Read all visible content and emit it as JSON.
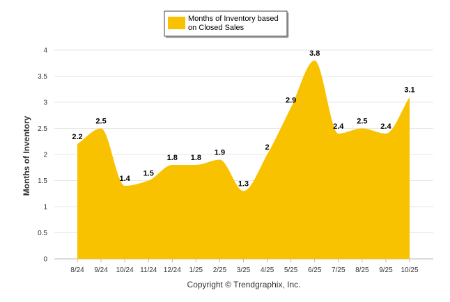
{
  "chart_data": {
    "type": "area",
    "series_name_lines": [
      "Months of Inventory based",
      "on Closed Sales"
    ],
    "categories": [
      "8/24",
      "9/24",
      "10/24",
      "11/24",
      "12/24",
      "1/25",
      "2/25",
      "3/25",
      "4/25",
      "5/25",
      "6/25",
      "7/25",
      "8/25",
      "9/25",
      "10/25"
    ],
    "values": [
      2.2,
      2.5,
      1.4,
      1.5,
      1.8,
      1.8,
      1.9,
      1.3,
      2,
      2.9,
      3.8,
      2.4,
      2.5,
      2.4,
      3.1
    ],
    "value_labels": [
      "2.2",
      "2.5",
      "1.4",
      "1.5",
      "1.8",
      "1.8",
      "1.9",
      "1.3",
      "2",
      "2.9",
      "3.8",
      "2.4",
      "2.5",
      "2.4",
      "3.1"
    ],
    "ylabel": "Months of Inventory",
    "xlabel": "",
    "ylim": [
      0,
      4
    ],
    "yticks": [
      "0",
      "0.5",
      "1",
      "1.5",
      "2",
      "2.5",
      "3",
      "3.5",
      "4"
    ],
    "grid": true,
    "legend_position": "top-center",
    "fill_color": "#F8C200",
    "credit": "Copyright © Trendgraphix, Inc."
  }
}
